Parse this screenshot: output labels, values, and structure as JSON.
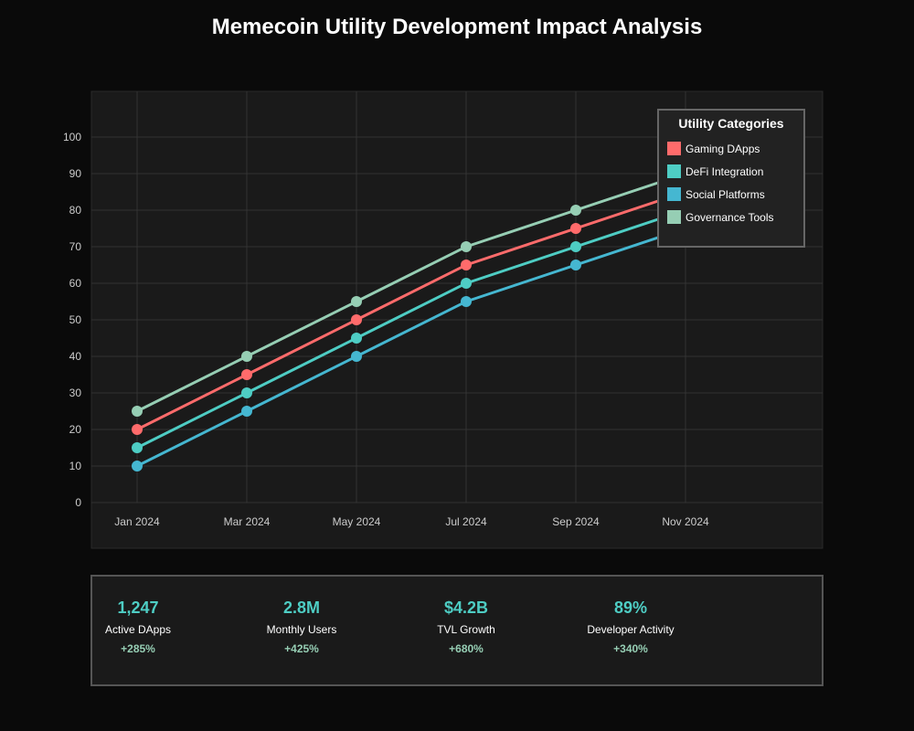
{
  "title": "Memecoin Utility Development Impact Analysis",
  "chart_data": {
    "type": "line",
    "title": "Memecoin Utility Development Impact Analysis",
    "categories": [
      "Jan 2024",
      "Mar 2024",
      "May 2024",
      "Jul 2024",
      "Sep 2024",
      "Nov 2024"
    ],
    "ylim": [
      0,
      100
    ],
    "yticks": [
      0,
      10,
      20,
      30,
      40,
      50,
      60,
      70,
      80,
      90,
      100
    ],
    "grid": true,
    "legend_title": "Utility Categories",
    "legend_position": "top-right",
    "series": [
      {
        "name": "Gaming DApps",
        "color": "#ff6b6b",
        "values": [
          20,
          35,
          50,
          65,
          75,
          85
        ]
      },
      {
        "name": "DeFi Integration",
        "color": "#4ecdc4",
        "values": [
          15,
          30,
          45,
          60,
          70,
          80
        ]
      },
      {
        "name": "Social Platforms",
        "color": "#45b7d1",
        "values": [
          10,
          25,
          40,
          55,
          65,
          75
        ]
      },
      {
        "name": "Governance Tools",
        "color": "#96ceb4",
        "values": [
          25,
          40,
          55,
          70,
          80,
          90
        ]
      }
    ]
  },
  "stats": [
    {
      "value": "1,247",
      "label": "Active DApps",
      "change": "+285%"
    },
    {
      "value": "2.8M",
      "label": "Monthly Users",
      "change": "+425%"
    },
    {
      "value": "$4.2B",
      "label": "TVL Growth",
      "change": "+680%"
    },
    {
      "value": "89%",
      "label": "Developer Activity",
      "change": "+340%"
    }
  ]
}
